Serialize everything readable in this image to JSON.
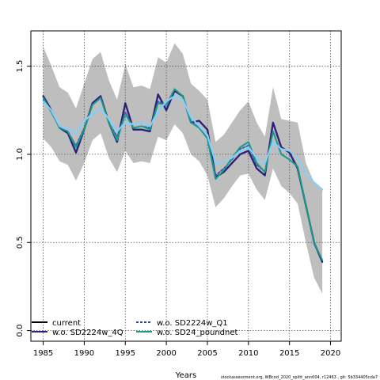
{
  "chart_data": {
    "type": "line",
    "title": "",
    "xlabel": "Years",
    "ylabel": "",
    "xlim": [
      1983.5,
      2021.3
    ],
    "ylim": [
      -0.06,
      1.7
    ],
    "xticks": [
      1985,
      1990,
      1995,
      2000,
      2005,
      2010,
      2015,
      2020
    ],
    "yticks": [
      0.0,
      0.5,
      1.0,
      1.5
    ],
    "grid": true,
    "legend_position": "bottom-left",
    "x": [
      1985,
      1986,
      1987,
      1988,
      1989,
      1990,
      1991,
      1992,
      1993,
      1994,
      1995,
      1996,
      1997,
      1998,
      1999,
      2000,
      2001,
      2002,
      2003,
      2004,
      2005,
      2006,
      2007,
      2008,
      2009,
      2010,
      2011,
      2012,
      2013,
      2014,
      2015,
      2016,
      2017,
      2018,
      2019
    ],
    "band": {
      "upper": [
        1.61,
        1.5,
        1.38,
        1.35,
        1.26,
        1.4,
        1.54,
        1.58,
        1.42,
        1.31,
        1.51,
        1.38,
        1.39,
        1.37,
        1.55,
        1.52,
        1.63,
        1.57,
        1.4,
        1.36,
        1.31,
        1.07,
        1.11,
        1.18,
        1.25,
        1.3,
        1.18,
        1.1,
        1.38,
        1.2,
        1.19,
        1.18,
        0.95,
        0.84,
        0.8
      ],
      "lower": [
        1.09,
        1.04,
        0.96,
        0.94,
        0.85,
        0.95,
        1.08,
        1.12,
        0.98,
        0.9,
        1.02,
        0.95,
        0.96,
        0.95,
        1.1,
        1.08,
        1.17,
        1.12,
        1.0,
        0.96,
        0.88,
        0.7,
        0.75,
        0.82,
        0.88,
        0.89,
        0.8,
        0.74,
        0.92,
        0.82,
        0.78,
        0.72,
        0.5,
        0.3,
        0.21
      ]
    },
    "series": [
      {
        "name": "current",
        "style": "solid",
        "color": "#000000",
        "width": 2.2,
        "values": [
          1.33,
          1.25,
          1.15,
          1.12,
          1.01,
          1.14,
          1.29,
          1.33,
          1.18,
          1.07,
          1.29,
          1.14,
          1.14,
          1.13,
          1.34,
          1.25,
          1.36,
          1.33,
          1.18,
          1.19,
          1.14,
          0.87,
          0.9,
          0.95,
          1.0,
          1.02,
          0.92,
          0.88,
          1.18,
          1.04,
          1.01,
          0.92,
          0.71,
          0.5,
          0.39
        ]
      },
      {
        "name": "w.o. SD2224w_4Q",
        "style": "solid",
        "color": "#2e1f86",
        "width": 2.0,
        "values": [
          1.33,
          1.25,
          1.15,
          1.12,
          1.01,
          1.14,
          1.29,
          1.33,
          1.18,
          1.07,
          1.29,
          1.14,
          1.14,
          1.13,
          1.34,
          1.25,
          1.36,
          1.33,
          1.18,
          1.19,
          1.14,
          0.87,
          0.9,
          0.95,
          1.0,
          1.02,
          0.92,
          0.88,
          1.18,
          1.04,
          1.01,
          0.92,
          0.71,
          0.5,
          0.39
        ]
      },
      {
        "name": "w.o. SD2224w_Q1",
        "style": "dashed",
        "color": "#2c4a9c",
        "width": 1.5,
        "values": [
          1.31,
          1.24,
          1.15,
          1.13,
          1.05,
          1.15,
          1.28,
          1.32,
          1.18,
          1.1,
          1.24,
          1.15,
          1.16,
          1.15,
          1.3,
          1.28,
          1.37,
          1.33,
          1.19,
          1.15,
          1.09,
          0.88,
          0.92,
          0.97,
          1.03,
          1.05,
          0.94,
          0.9,
          1.13,
          1.0,
          0.97,
          0.93,
          0.71,
          0.49,
          0.4
        ]
      },
      {
        "name": "w.o. SD24_poundnet",
        "style": "solid",
        "color": "#1a9a8a",
        "width": 2.0,
        "values": [
          1.32,
          1.24,
          1.15,
          1.13,
          1.04,
          1.14,
          1.28,
          1.32,
          1.18,
          1.08,
          1.23,
          1.15,
          1.16,
          1.14,
          1.29,
          1.28,
          1.37,
          1.33,
          1.18,
          1.15,
          1.09,
          0.86,
          0.91,
          0.98,
          1.04,
          1.07,
          0.95,
          0.9,
          1.13,
          1.0,
          0.97,
          0.93,
          0.71,
          0.5,
          0.4
        ]
      },
      {
        "name": "",
        "style": "solid",
        "color": "#87cefa",
        "width": 2.2,
        "values": [
          1.3,
          1.25,
          1.16,
          1.15,
          1.12,
          1.19,
          1.23,
          1.26,
          1.2,
          1.13,
          1.18,
          1.17,
          1.18,
          1.16,
          1.24,
          1.3,
          1.33,
          1.31,
          1.21,
          1.16,
          1.11,
          0.95,
          0.96,
          0.98,
          1.02,
          1.04,
          0.98,
          0.95,
          1.07,
          1.03,
          1.02,
          0.98,
          0.89,
          0.84,
          0.8
        ]
      }
    ]
  },
  "legend": {
    "items": [
      {
        "label": "current",
        "color": "#000000",
        "style": "solid",
        "col": 0,
        "row": 0
      },
      {
        "label": "w.o. SD2224w_4Q",
        "color": "#2e1f86",
        "style": "solid",
        "col": 0,
        "row": 1
      },
      {
        "label": "w.o. SD2224w_Q1",
        "color": "#2c4a9c",
        "style": "dashed",
        "col": 1,
        "row": 0
      },
      {
        "label": "w.o. SD24_poundnet",
        "color": "#1a9a8a",
        "style": "solid",
        "col": 1,
        "row": 1
      }
    ]
  },
  "colors": {
    "band": "#bebebe",
    "grid": "#555555"
  },
  "footer": {
    "text": "stockassessment.org, WBcod_2020_splitt_ann004, r12463 , git: 5b334405cda7"
  }
}
